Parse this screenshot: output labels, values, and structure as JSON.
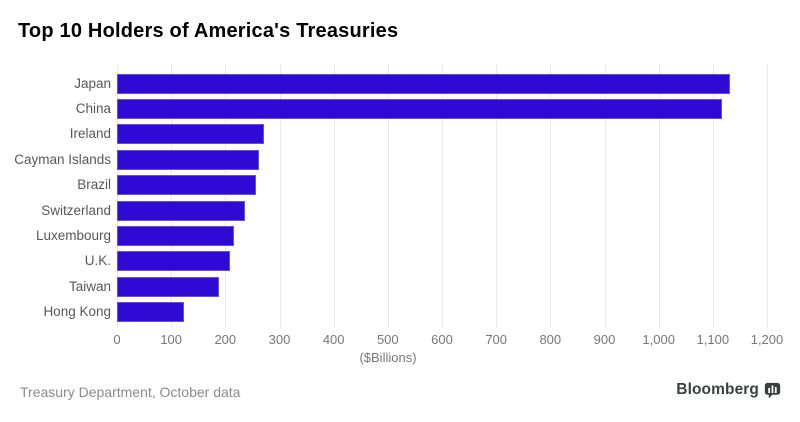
{
  "title": "Top 10 Holders of America's Treasuries",
  "source_note": "Treasury Department, October data",
  "brand": {
    "name": "Bloomberg",
    "icon": "bloomberg-chart-bubble-icon"
  },
  "chart_data": {
    "type": "bar",
    "orientation": "horizontal",
    "title": "Top 10 Holders of America's Treasuries",
    "categories": [
      "Japan",
      "China",
      "Ireland",
      "Cayman Islands",
      "Brazil",
      "Switzerland",
      "Luxembourg",
      "U.K.",
      "Taiwan",
      "Hong Kong"
    ],
    "values": [
      1132,
      1116,
      271,
      262,
      256,
      236,
      216,
      209,
      189,
      124
    ],
    "xlabel": "($Billions)",
    "ylabel": "",
    "xlim": [
      0,
      1200
    ],
    "x_ticks": [
      0,
      100,
      200,
      300,
      400,
      500,
      600,
      700,
      800,
      900,
      1000,
      1100,
      1200
    ],
    "x_tick_labels": [
      "0",
      "100",
      "200",
      "300",
      "400",
      "500",
      "600",
      "700",
      "800",
      "900",
      "1,000",
      "1,100",
      "1,200"
    ],
    "grid": "vertical",
    "legend": "none",
    "bar_color": "#2e0bd4",
    "gridline_color": "#e9e9e9",
    "label_color": "#58585a",
    "tick_color": "#777777"
  }
}
